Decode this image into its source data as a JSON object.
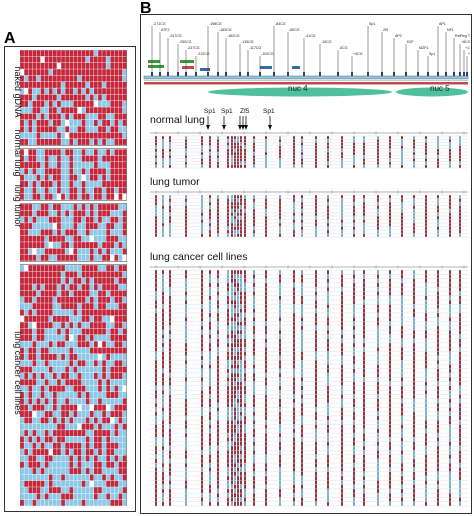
{
  "panels": {
    "a": "A",
    "b": "B"
  },
  "panel_a": {
    "groups": [
      {
        "label": "naked gDNA",
        "rows": 15
      },
      {
        "label": "normal lung",
        "rows": 8
      },
      {
        "label": "lung tumor",
        "rows": 9
      },
      {
        "label": "lung cancer cell lines",
        "rows": 38
      }
    ],
    "colors": {
      "methylated": "#c4283c",
      "unmethylated": "#8ec8e8",
      "missing": "#ffffff"
    }
  },
  "panel_b": {
    "nucleosomes": [
      {
        "label": "nuc 4"
      },
      {
        "label": "nuc 5"
      }
    ],
    "binding_sites": [
      {
        "label": "Sp1"
      },
      {
        "label": "Sp1"
      },
      {
        "label": "Zf5"
      },
      {
        "label": "Sp1"
      }
    ],
    "map_labels": [
      "-271CG",
      "ATF2",
      "-247CG",
      "-250CG",
      "-237CG",
      "-212CG",
      "-198CG",
      "-183CG",
      "-162CG",
      "-135CG",
      "-117CG",
      "-102CG",
      "-84CG",
      "-60CG",
      "-41CG",
      "-16CG",
      "-5CG",
      "+4CG",
      "Sp1",
      "Zf5",
      "AP2",
      "E2F",
      "MZF1",
      "Sp1",
      "AP1",
      "NF1",
      "RelReg TSS",
      "+8CG",
      "+17CG",
      "+29CG"
    ],
    "sections": [
      {
        "label": "normal lung",
        "rows": 10
      },
      {
        "label": "lung tumor",
        "rows": 12
      },
      {
        "label": "lung  cancer cell lines",
        "rows": 55
      }
    ],
    "colors": {
      "methylated": "#8e1f2e",
      "unmethylated": "#6fa8c8",
      "nucleosome": "#4fbf9c",
      "track": "#c44848"
    }
  }
}
